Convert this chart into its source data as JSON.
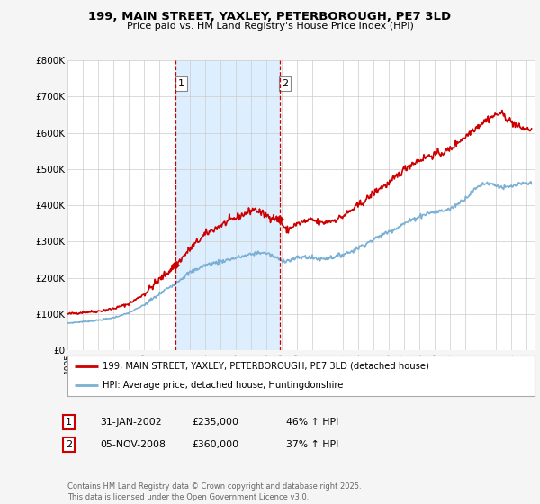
{
  "title_line1": "199, MAIN STREET, YAXLEY, PETERBOROUGH, PE7 3LD",
  "title_line2": "Price paid vs. HM Land Registry's House Price Index (HPI)",
  "ylim": [
    0,
    800000
  ],
  "yticks": [
    0,
    100000,
    200000,
    300000,
    400000,
    500000,
    600000,
    700000,
    800000
  ],
  "ytick_labels": [
    "£0",
    "£100K",
    "£200K",
    "£300K",
    "£400K",
    "£500K",
    "£600K",
    "£700K",
    "£800K"
  ],
  "bg_color": "#f5f5f5",
  "plot_bg": "#ffffff",
  "grid_color": "#cccccc",
  "shade_color": "#ddeeff",
  "red_color": "#cc0000",
  "blue_color": "#7ab0d4",
  "vline1_x": 2002.08,
  "vline2_x": 2008.85,
  "vline_color": "#cc0000",
  "marker1_year": 2002.08,
  "marker1_price": 235000,
  "marker2_year": 2008.85,
  "marker2_price": 360000,
  "legend_label_red": "199, MAIN STREET, YAXLEY, PETERBOROUGH, PE7 3LD (detached house)",
  "legend_label_blue": "HPI: Average price, detached house, Huntingdonshire",
  "table_rows": [
    {
      "num": "1",
      "date": "31-JAN-2002",
      "price": "£235,000",
      "change": "46% ↑ HPI"
    },
    {
      "num": "2",
      "date": "05-NOV-2008",
      "price": "£360,000",
      "change": "37% ↑ HPI"
    }
  ],
  "footer": "Contains HM Land Registry data © Crown copyright and database right 2025.\nThis data is licensed under the Open Government Licence v3.0.",
  "xmin": 1995,
  "xmax": 2025.5
}
